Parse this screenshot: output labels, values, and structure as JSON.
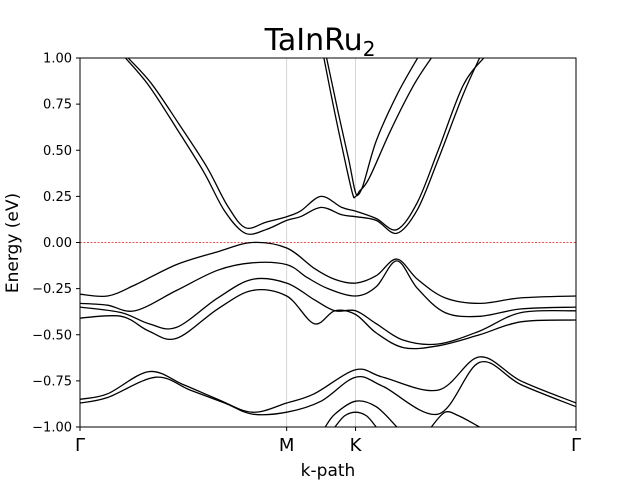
{
  "chart_data": {
    "type": "line",
    "title": "TaInRu",
    "title_subscript": "2",
    "xlabel": "k-path",
    "ylabel": "Energy (eV)",
    "ylim": [
      -1.0,
      1.0
    ],
    "yticks": [
      -1.0,
      -0.75,
      -0.5,
      -0.25,
      0.0,
      0.25,
      0.5,
      0.75,
      1.0
    ],
    "ytick_labels": [
      "−1.00",
      "−0.75",
      "−0.50",
      "−0.25",
      "0.00",
      "0.25",
      "0.50",
      "0.75",
      "1.00"
    ],
    "xlim": [
      0,
      3.6
    ],
    "high_symmetry_points": [
      {
        "label": "Γ",
        "x": 0
      },
      {
        "label": "M",
        "x": 1.5
      },
      {
        "label": "K",
        "x": 2.0
      },
      {
        "label": "Γ",
        "x": 3.6
      }
    ],
    "fermi_level": 0.0,
    "colors": {
      "bands": "#000000",
      "fermi": "#e41a1c",
      "vlines": "#cccccc"
    },
    "series": [
      {
        "values": [
          [
            0.33,
            1.0
          ],
          [
            0.5,
            0.85
          ],
          [
            0.7,
            0.62
          ],
          [
            0.9,
            0.38
          ],
          [
            1.05,
            0.17
          ],
          [
            1.2,
            0.05
          ],
          [
            1.35,
            0.07
          ],
          [
            1.5,
            0.12
          ],
          [
            1.6,
            0.14
          ],
          [
            1.75,
            0.19
          ],
          [
            1.9,
            0.15
          ],
          [
            2.0,
            0.14
          ],
          [
            2.15,
            0.12
          ],
          [
            2.3,
            0.05
          ],
          [
            2.45,
            0.18
          ],
          [
            2.6,
            0.45
          ],
          [
            2.78,
            0.8
          ],
          [
            2.9,
            1.0
          ]
        ]
      },
      {
        "values": [
          [
            0.35,
            1.0
          ],
          [
            0.52,
            0.86
          ],
          [
            0.72,
            0.64
          ],
          [
            0.92,
            0.41
          ],
          [
            1.07,
            0.2
          ],
          [
            1.2,
            0.08
          ],
          [
            1.35,
            0.11
          ],
          [
            1.5,
            0.14
          ],
          [
            1.6,
            0.17
          ],
          [
            1.75,
            0.25
          ],
          [
            1.9,
            0.19
          ],
          [
            2.0,
            0.17
          ],
          [
            2.15,
            0.13
          ],
          [
            2.3,
            0.07
          ],
          [
            2.45,
            0.22
          ],
          [
            2.6,
            0.5
          ],
          [
            2.78,
            0.85
          ],
          [
            2.93,
            1.0
          ]
        ]
      },
      {
        "values": [
          [
            1.77,
            1.0
          ],
          [
            1.85,
            0.7
          ],
          [
            1.93,
            0.42
          ],
          [
            1.98,
            0.26
          ],
          [
            2.0,
            0.25
          ],
          [
            2.05,
            0.3
          ],
          [
            2.15,
            0.55
          ],
          [
            2.3,
            0.8
          ],
          [
            2.45,
            1.0
          ]
        ]
      },
      {
        "values": [
          [
            1.79,
            1.0
          ],
          [
            1.87,
            0.72
          ],
          [
            1.95,
            0.45
          ],
          [
            2.0,
            0.27
          ],
          [
            2.03,
            0.28
          ],
          [
            2.1,
            0.35
          ],
          [
            2.25,
            0.6
          ],
          [
            2.42,
            0.85
          ],
          [
            2.55,
            1.0
          ]
        ]
      },
      {
        "values": [
          [
            0,
            -0.28
          ],
          [
            0.2,
            -0.29
          ],
          [
            0.4,
            -0.23
          ],
          [
            0.7,
            -0.12
          ],
          [
            1.0,
            -0.05
          ],
          [
            1.25,
            0.0
          ],
          [
            1.5,
            -0.03
          ],
          [
            1.7,
            -0.14
          ],
          [
            1.85,
            -0.2
          ],
          [
            2.0,
            -0.22
          ],
          [
            2.15,
            -0.18
          ],
          [
            2.3,
            -0.09
          ],
          [
            2.45,
            -0.2
          ],
          [
            2.65,
            -0.3
          ],
          [
            2.9,
            -0.33
          ],
          [
            3.2,
            -0.3
          ],
          [
            3.6,
            -0.29
          ]
        ]
      },
      {
        "values": [
          [
            0,
            -0.33
          ],
          [
            0.2,
            -0.34
          ],
          [
            0.4,
            -0.37
          ],
          [
            0.7,
            -0.26
          ],
          [
            1.0,
            -0.15
          ],
          [
            1.25,
            -0.11
          ],
          [
            1.5,
            -0.12
          ],
          [
            1.65,
            -0.19
          ],
          [
            1.8,
            -0.25
          ],
          [
            2.0,
            -0.29
          ],
          [
            2.15,
            -0.24
          ],
          [
            2.3,
            -0.1
          ],
          [
            2.45,
            -0.25
          ],
          [
            2.65,
            -0.38
          ],
          [
            2.9,
            -0.4
          ],
          [
            3.2,
            -0.36
          ],
          [
            3.6,
            -0.35
          ]
        ]
      },
      {
        "values": [
          [
            0,
            -0.35
          ],
          [
            0.3,
            -0.38
          ],
          [
            0.5,
            -0.44
          ],
          [
            0.7,
            -0.46
          ],
          [
            1.0,
            -0.3
          ],
          [
            1.25,
            -0.2
          ],
          [
            1.5,
            -0.22
          ],
          [
            1.7,
            -0.31
          ],
          [
            1.85,
            -0.37
          ],
          [
            2.0,
            -0.37
          ],
          [
            2.15,
            -0.44
          ],
          [
            2.35,
            -0.53
          ],
          [
            2.6,
            -0.55
          ],
          [
            2.9,
            -0.48
          ],
          [
            3.2,
            -0.38
          ],
          [
            3.6,
            -0.37
          ]
        ]
      },
      {
        "values": [
          [
            0,
            -0.41
          ],
          [
            0.3,
            -0.4
          ],
          [
            0.5,
            -0.48
          ],
          [
            0.7,
            -0.52
          ],
          [
            1.0,
            -0.36
          ],
          [
            1.25,
            -0.26
          ],
          [
            1.5,
            -0.29
          ],
          [
            1.7,
            -0.44
          ],
          [
            1.85,
            -0.37
          ],
          [
            2.0,
            -0.39
          ],
          [
            2.15,
            -0.49
          ],
          [
            2.35,
            -0.57
          ],
          [
            2.6,
            -0.56
          ],
          [
            2.9,
            -0.5
          ],
          [
            3.2,
            -0.43
          ],
          [
            3.6,
            -0.42
          ]
        ]
      },
      {
        "values": [
          [
            0,
            -0.85
          ],
          [
            0.2,
            -0.82
          ],
          [
            0.5,
            -0.7
          ],
          [
            0.75,
            -0.77
          ],
          [
            1.0,
            -0.85
          ],
          [
            1.25,
            -0.92
          ],
          [
            1.5,
            -0.87
          ],
          [
            1.7,
            -0.82
          ],
          [
            2.0,
            -0.69
          ],
          [
            2.2,
            -0.73
          ],
          [
            2.6,
            -0.8
          ],
          [
            2.9,
            -0.62
          ],
          [
            3.2,
            -0.75
          ],
          [
            3.6,
            -0.87
          ]
        ]
      },
      {
        "values": [
          [
            0,
            -0.87
          ],
          [
            0.2,
            -0.84
          ],
          [
            0.55,
            -0.73
          ],
          [
            0.8,
            -0.8
          ],
          [
            1.05,
            -0.87
          ],
          [
            1.25,
            -0.93
          ],
          [
            1.5,
            -0.92
          ],
          [
            1.75,
            -0.86
          ],
          [
            2.0,
            -0.73
          ],
          [
            2.2,
            -0.78
          ],
          [
            2.6,
            -0.93
          ],
          [
            2.9,
            -0.65
          ],
          [
            3.2,
            -0.77
          ],
          [
            3.6,
            -0.89
          ]
        ]
      },
      {
        "values": [
          [
            1.78,
            -1.0
          ],
          [
            1.85,
            -0.93
          ],
          [
            2.0,
            -0.86
          ],
          [
            2.15,
            -0.89
          ],
          [
            2.3,
            -1.0
          ]
        ]
      },
      {
        "values": [
          [
            1.85,
            -1.0
          ],
          [
            1.92,
            -0.94
          ],
          [
            2.0,
            -0.92
          ],
          [
            2.08,
            -0.94
          ],
          [
            2.15,
            -1.0
          ]
        ]
      },
      {
        "values": [
          [
            2.55,
            -1.0
          ],
          [
            2.65,
            -0.92
          ],
          [
            2.75,
            -0.94
          ],
          [
            2.9,
            -1.0
          ]
        ]
      }
    ]
  }
}
